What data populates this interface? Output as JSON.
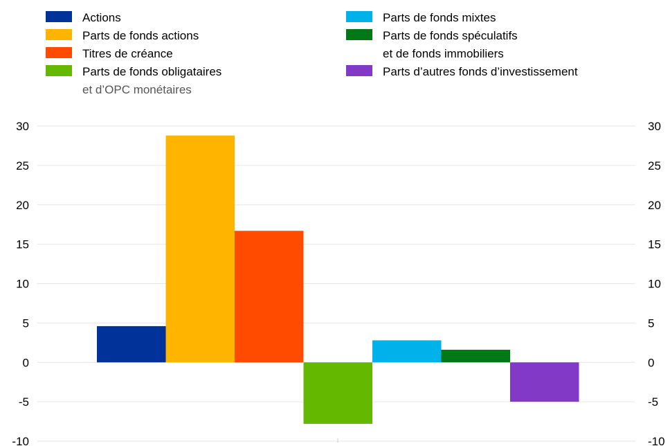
{
  "chart_data": {
    "type": "bar",
    "series": [
      {
        "name": "Actions",
        "value": 4.6,
        "color": "#003299"
      },
      {
        "name": "Parts de fonds actions",
        "value": 28.8,
        "color": "#FFB400"
      },
      {
        "name": "Titres de créance",
        "value": 16.7,
        "color": "#FF4B00"
      },
      {
        "name": "Parts de fonds obligataires",
        "name_line2": "et d’OPC monétaires",
        "value": -7.8,
        "color": "#65B800"
      },
      {
        "name": "Parts de fonds mixtes",
        "value": 2.8,
        "color": "#00B1EA"
      },
      {
        "name": "Parts de fonds spéculatifs",
        "name_line2": "et de fonds immobiliers",
        "value": 1.6,
        "color": "#007816"
      },
      {
        "name": "Parts d’autres fonds d’investissement",
        "value": -5.0,
        "color": "#8139C6"
      }
    ],
    "ylim": [
      -10,
      30
    ],
    "yticks": [
      30,
      25,
      20,
      15,
      10,
      5,
      0,
      -5,
      -10
    ],
    "grid": true,
    "legend_placement": "top",
    "dual_y_axis": true
  }
}
